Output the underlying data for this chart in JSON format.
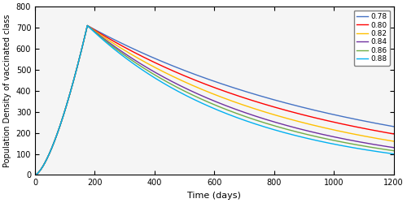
{
  "title": "",
  "xlabel": "Time (days)",
  "ylabel": "Population Density of vaccinated class",
  "xlim": [
    0,
    1200
  ],
  "ylim": [
    0,
    800
  ],
  "xticks": [
    0,
    200,
    400,
    600,
    800,
    1000,
    1200
  ],
  "yticks": [
    0,
    100,
    200,
    300,
    400,
    500,
    600,
    700,
    800
  ],
  "fractional_orders": [
    0.78,
    0.8,
    0.82,
    0.84,
    0.86,
    0.88
  ],
  "line_colors": [
    "#4472C4",
    "#FF0000",
    "#FFC000",
    "#7030A0",
    "#70AD47",
    "#00B0F0"
  ],
  "legend_loc": "upper right",
  "peak_time": 175,
  "peak_value": 710,
  "start_value": 0,
  "end_values": [
    230,
    195,
    160,
    130,
    115,
    100
  ],
  "bg_color": "#f5f5f5",
  "figsize": [
    5.0,
    2.5
  ],
  "dpi": 100
}
